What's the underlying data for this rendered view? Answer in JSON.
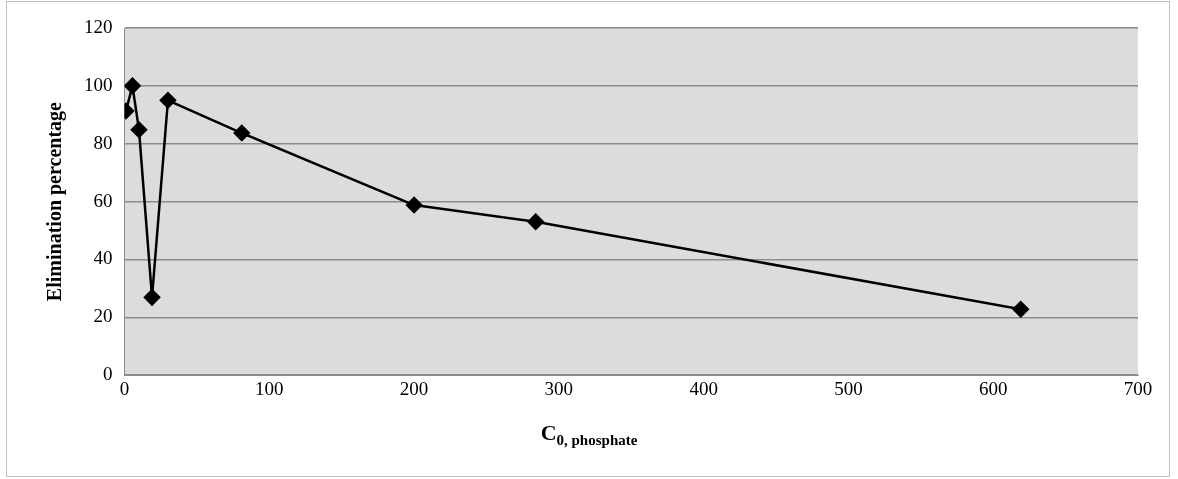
{
  "chart_data": {
    "type": "line",
    "xlabel": "C$_{0, phosphate}$",
    "ylabel": "Elimination percentage",
    "x": [
      1,
      5.5,
      10,
      19,
      30,
      81,
      200,
      284,
      619
    ],
    "series": [
      {
        "color": "#000000",
        "values": [
          91.3,
          100,
          84.8,
          26.9,
          95,
          83.7,
          58.8,
          53,
          22.8
        ]
      }
    ],
    "xlim": [
      0,
      700
    ],
    "xticks": [
      0,
      100,
      200,
      300,
      400,
      500,
      600,
      700
    ],
    "ylim": [
      0,
      120
    ],
    "yticks": [
      0,
      20,
      40,
      60,
      80,
      100,
      120
    ],
    "grid": "y",
    "marker": "diamond",
    "line_style": "solid",
    "legend": false
  }
}
